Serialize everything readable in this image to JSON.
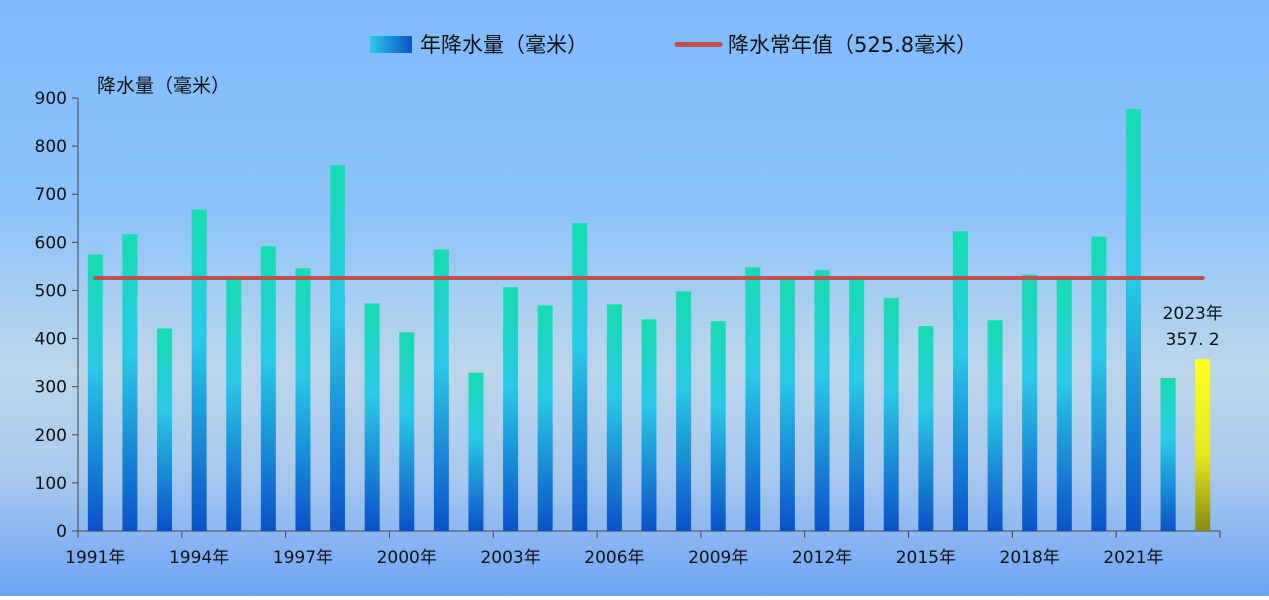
{
  "chart_data": {
    "type": "bar",
    "ylabel": "降水量（毫米）",
    "ylim": [
      0,
      900
    ],
    "yticks": [
      0,
      100,
      200,
      300,
      400,
      500,
      600,
      700,
      800,
      900
    ],
    "categories": [
      "1991年",
      "1992年",
      "1993年",
      "1994年",
      "1995年",
      "1996年",
      "1997年",
      "1998年",
      "1999年",
      "2000年",
      "2001年",
      "2002年",
      "2003年",
      "2004年",
      "2005年",
      "2006年",
      "2007年",
      "2008年",
      "2009年",
      "2010年",
      "2011年",
      "2012年",
      "2013年",
      "2014年",
      "2015年",
      "2016年",
      "2017年",
      "2018年",
      "2019年",
      "2020年",
      "2021年",
      "2022年",
      "2023年"
    ],
    "xtick_labels": [
      "1991年",
      "1994年",
      "1997年",
      "2000年",
      "2003年",
      "2006年",
      "2009年",
      "2012年",
      "2015年",
      "2018年",
      "2021年"
    ],
    "series": [
      {
        "name": "年降水量（毫米）",
        "type": "bar",
        "values": [
          575,
          617,
          421,
          668,
          526,
          592,
          546,
          760,
          473,
          413,
          585,
          329,
          507,
          469,
          640,
          471,
          440,
          498,
          436,
          548,
          528,
          542,
          530,
          484,
          426,
          623,
          438,
          533,
          526,
          612,
          877,
          318,
          357.2
        ]
      },
      {
        "name": "降水常年值（525.8毫米）",
        "type": "line",
        "value": 525.8
      }
    ],
    "annotation": {
      "year_label": "2023年",
      "value_label": "357. 2"
    },
    "colors": {
      "bar_top": "#16dcb0",
      "bar_mid": "#2bc9e8",
      "bar_bottom": "#0a52c8",
      "highlight_top": "#ffff20",
      "highlight_bottom": "#8a8a12",
      "line": "#c0504d",
      "axis": "#444444"
    },
    "legend_position": "top-center",
    "grid": false
  }
}
